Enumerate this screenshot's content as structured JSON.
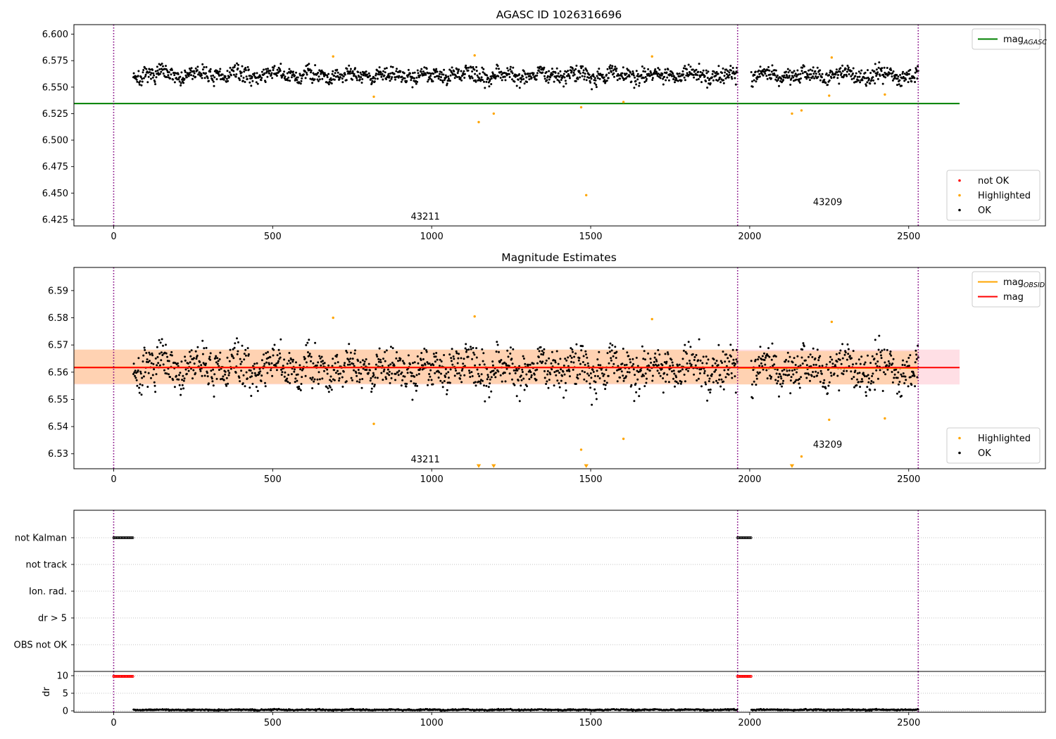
{
  "chart_data": [
    {
      "type": "scatter",
      "title": "AGASC ID 1026316696",
      "xlabel": "",
      "ylabel": "",
      "xlim": [
        -125,
        2930
      ],
      "ylim": [
        6.419,
        6.609
      ],
      "x_ticks": [
        0,
        500,
        1000,
        1500,
        2000,
        2500
      ],
      "x_tick_labels": [
        "0",
        "500",
        "1000",
        "1500",
        "2000",
        "2500"
      ],
      "y_ticks": [
        6.425,
        6.45,
        6.475,
        6.5,
        6.525,
        6.55,
        6.575,
        6.6
      ],
      "y_tick_labels": [
        "6.425",
        "6.450",
        "6.475",
        "6.500",
        "6.525",
        "6.550",
        "6.575",
        "6.600"
      ],
      "grid": false,
      "vlines": [
        0,
        1962,
        2530
      ],
      "hlines": [
        {
          "name": "mag_AGASC",
          "y": 6.5345,
          "x": [
            -125,
            2660
          ],
          "color": "#008000"
        }
      ],
      "series": [
        {
          "name": "not OK",
          "color": "#ff0000",
          "points": []
        },
        {
          "name": "Highlighted",
          "color": "#ffa500",
          "points": [
            [
              690,
              6.579
            ],
            [
              818,
              6.541
            ],
            [
              1135,
              6.58
            ],
            [
              1148,
              6.517
            ],
            [
              1195,
              6.525
            ],
            [
              1470,
              6.531
            ],
            [
              1486,
              6.448
            ],
            [
              1603,
              6.536
            ],
            [
              1693,
              6.579
            ],
            [
              2133,
              6.525
            ],
            [
              2163,
              6.528
            ],
            [
              2250,
              6.542
            ],
            [
              2258,
              6.578
            ],
            [
              2425,
              6.543
            ]
          ]
        },
        {
          "name": "OK",
          "color": "#000000",
          "generated": {
            "segments": [
              [
                62,
                1962
              ],
              [
                2005,
                2530
              ]
            ],
            "step": 1.5,
            "center": 6.5615,
            "amplitude": 0.007,
            "noise": 0.011,
            "seed": 7
          }
        }
      ],
      "legends": [
        {
          "placement": "upper right",
          "items": [
            {
              "label": "mag",
              "sub": "AGASC",
              "kind": "line",
              "color": "#008000"
            }
          ]
        },
        {
          "placement": "lower right",
          "items": [
            {
              "label": "not OK",
              "kind": "dot",
              "color": "#ff0000"
            },
            {
              "label": "Highlighted",
              "kind": "dot",
              "color": "#ffa500"
            },
            {
              "label": "OK",
              "kind": "dot",
              "color": "#000000"
            }
          ]
        }
      ],
      "annotations": [
        {
          "text": "43211",
          "x": 980,
          "y": 6.425
        },
        {
          "text": "43209",
          "x": 2245,
          "y": 6.4385
        }
      ]
    },
    {
      "type": "scatter",
      "title": "Magnitude Estimates",
      "xlabel": "",
      "ylabel": "",
      "xlim": [
        -125,
        2930
      ],
      "ylim": [
        6.5245,
        6.5985
      ],
      "x_ticks": [
        0,
        500,
        1000,
        1500,
        2000,
        2500
      ],
      "x_tick_labels": [
        "0",
        "500",
        "1000",
        "1500",
        "2000",
        "2500"
      ],
      "y_ticks": [
        6.53,
        6.54,
        6.55,
        6.56,
        6.57,
        6.58,
        6.59
      ],
      "y_tick_labels": [
        "6.53",
        "6.54",
        "6.55",
        "6.56",
        "6.57",
        "6.58",
        "6.59"
      ],
      "grid": false,
      "vlines": [
        0,
        1962,
        2530
      ],
      "bands": [
        {
          "name": "mag range",
          "x": [
            -125,
            2660
          ],
          "y": [
            6.5555,
            6.5683
          ],
          "color": "#ffc0cb",
          "opacity": 0.5
        },
        {
          "name": "mag_OBSID range",
          "x": [
            -125,
            1962
          ],
          "y": [
            6.5557,
            6.5683
          ],
          "color": "#ffa500",
          "opacity": 0.22
        },
        {
          "name": "mag_OBSID range 2",
          "x": [
            1962,
            2530
          ],
          "y": [
            6.5555,
            6.5678
          ],
          "color": "#ffa500",
          "opacity": 0.22
        }
      ],
      "hlines": [
        {
          "name": "mag_OBSID",
          "y": 6.5618,
          "x": [
            -125,
            1962
          ],
          "color": "#ffa500"
        },
        {
          "name": "mag_OBSID 2",
          "y": 6.5615,
          "x": [
            1962,
            2530
          ],
          "color": "#ffa500"
        },
        {
          "name": "mag",
          "y": 6.5617,
          "x": [
            -125,
            2660
          ],
          "color": "#ff0000"
        }
      ],
      "series": [
        {
          "name": "Highlighted",
          "color": "#ffa500",
          "points": [
            [
              690,
              6.58
            ],
            [
              818,
              6.541
            ],
            [
              1135,
              6.5805
            ],
            [
              1470,
              6.5315
            ],
            [
              1603,
              6.5355
            ],
            [
              1693,
              6.5795
            ],
            [
              2163,
              6.529
            ],
            [
              2250,
              6.5425
            ],
            [
              2258,
              6.5785
            ],
            [
              2425,
              6.543
            ]
          ]
        },
        {
          "name": "Highlighted (out of range)",
          "color": "#ffa500",
          "marker": "triangle-down",
          "points": [
            [
              1148,
              6.5255
            ],
            [
              1195,
              6.5255
            ],
            [
              1486,
              6.5255
            ],
            [
              2133,
              6.5255
            ]
          ]
        },
        {
          "name": "OK",
          "color": "#000000",
          "generated": {
            "segments": [
              [
                62,
                1962
              ],
              [
                2005,
                2530
              ]
            ],
            "step": 1.5,
            "center": 6.5615,
            "amplitude": 0.007,
            "noise": 0.011,
            "seed": 7
          }
        }
      ],
      "legends": [
        {
          "placement": "upper right",
          "items": [
            {
              "label": "mag",
              "sub": "OBSID",
              "kind": "line",
              "color": "#ffa500"
            },
            {
              "label": "mag",
              "sub": "",
              "kind": "line",
              "color": "#ff0000"
            }
          ]
        },
        {
          "placement": "lower right",
          "items": [
            {
              "label": "Highlighted",
              "kind": "dot",
              "color": "#ffa500"
            },
            {
              "label": "OK",
              "kind": "dot",
              "color": "#000000"
            }
          ]
        }
      ],
      "annotations": [
        {
          "text": "43211",
          "x": 980,
          "y": 6.5268
        },
        {
          "text": "43209",
          "x": 2245,
          "y": 6.5322
        }
      ]
    },
    {
      "type": "scatter",
      "title": "",
      "xlabel": "",
      "ylabel": "",
      "xlim": [
        -125,
        2930
      ],
      "categories": [
        "not Kalman",
        "not track",
        "Ion. rad.",
        "dr > 5",
        "OBS not OK"
      ],
      "grid": true,
      "vlines": [
        0,
        1962,
        2530
      ],
      "series": [
        {
          "name": "not Kalman",
          "color": "#000000",
          "points_x": [
            {
              "from": 0,
              "to": 62,
              "step": 3
            },
            {
              "from": 1962,
              "to": 2005,
              "step": 3
            }
          ]
        }
      ]
    },
    {
      "type": "scatter",
      "title": "",
      "xlabel": "",
      "ylabel": "dr",
      "xlim": [
        -125,
        2930
      ],
      "ylim": [
        -0.4,
        11.2
      ],
      "x_ticks": [
        0,
        500,
        1000,
        1500,
        2000,
        2500
      ],
      "x_tick_labels": [
        "0",
        "500",
        "1000",
        "1500",
        "2000",
        "2500"
      ],
      "y_ticks": [
        0,
        5,
        10
      ],
      "y_tick_labels": [
        "0",
        "5",
        "10"
      ],
      "grid": true,
      "vlines": [
        0,
        1962,
        2530
      ],
      "series": [
        {
          "name": "dr (clipped)",
          "color": "#ff0000",
          "points_x": [
            {
              "from": 0,
              "to": 62,
              "step": 3,
              "y": 9.8
            },
            {
              "from": 1962,
              "to": 2005,
              "step": 3,
              "y": 9.8
            }
          ]
        },
        {
          "name": "dr",
          "color": "#000000",
          "generated": {
            "segments": [
              [
                62,
                1962
              ],
              [
                2005,
                2530
              ]
            ],
            "step": 1.5,
            "center": 0.3,
            "amplitude": 0.15,
            "noise": 0.3,
            "seed": 11
          }
        }
      ]
    }
  ]
}
